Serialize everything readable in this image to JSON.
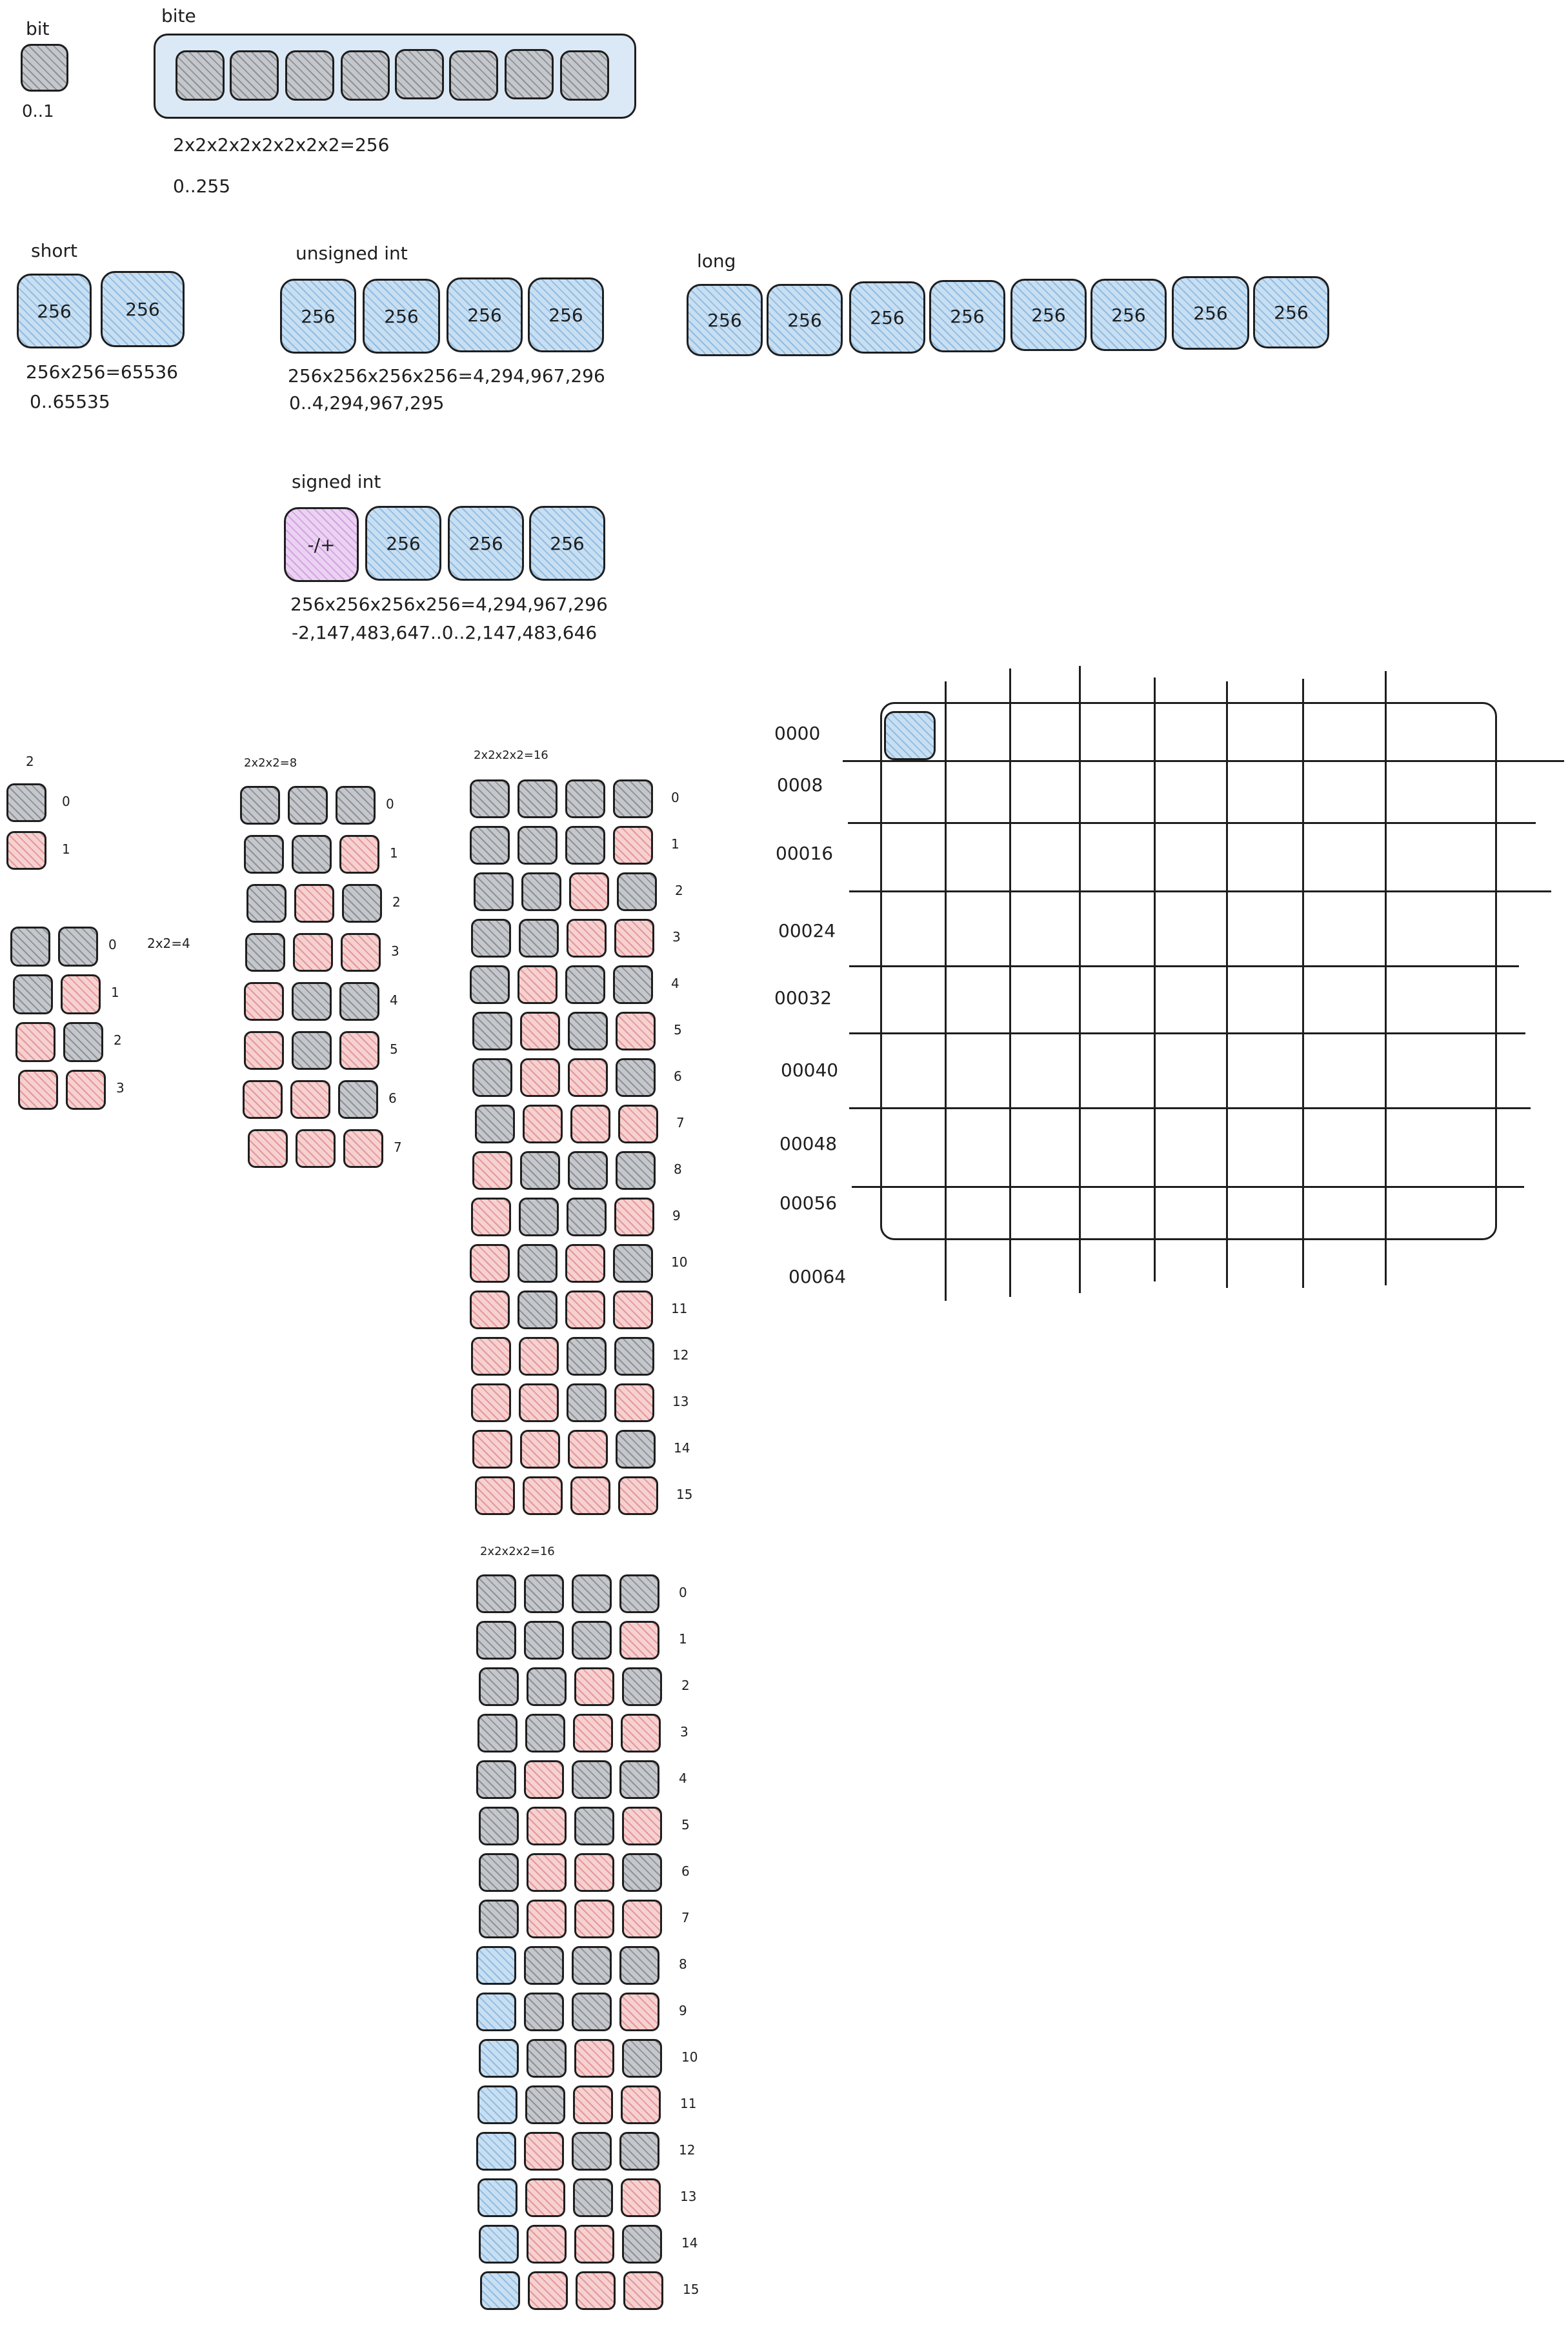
{
  "bit": {
    "title": "bit",
    "range": "0..1"
  },
  "bite": {
    "title": "bite",
    "formula": "2x2x2x2x2x2x2x2=256",
    "range": "0..255"
  },
  "short": {
    "title": "short",
    "cell": "256",
    "formula": "256x256=65536",
    "range": "0..65535"
  },
  "unsigned_int": {
    "title": "unsigned int",
    "cell": "256",
    "formula": "256x256x256x256=4,294,967,296",
    "range": "0..4,294,967,295"
  },
  "long": {
    "title": "long",
    "cell": "256"
  },
  "signed_int": {
    "title": "signed int",
    "sign_cell": "-/+",
    "cell": "256",
    "formula": "256x256x256x256=4,294,967,296",
    "range": "-2,147,483,647..0..2,147,483,646"
  },
  "tables": {
    "t1": {
      "title": "2",
      "rows": [
        "0",
        "1"
      ]
    },
    "t2": {
      "title": "2x2=4",
      "rows": [
        "0",
        "1",
        "2",
        "3"
      ]
    },
    "t3": {
      "title": "2x2x2=8",
      "rows": [
        "0",
        "1",
        "2",
        "3",
        "4",
        "5",
        "6",
        "7"
      ]
    },
    "t4": {
      "title": "2x2x2x2=16",
      "rows": [
        "0",
        "1",
        "2",
        "3",
        "4",
        "5",
        "6",
        "7",
        "8",
        "9",
        "10",
        "11",
        "12",
        "13",
        "14",
        "15"
      ]
    },
    "t5": {
      "title": "2x2x2x2=16",
      "rows": [
        "0",
        "1",
        "2",
        "3",
        "4",
        "5",
        "6",
        "7",
        "8",
        "9",
        "10",
        "11",
        "12",
        "13",
        "14",
        "15"
      ]
    }
  },
  "memory_grid": {
    "address_labels": [
      "0000",
      "0008",
      "00016",
      "00024",
      "00032",
      "00040",
      "00048",
      "00056",
      "00064"
    ]
  },
  "colors": {
    "bit_zero": "#c4c7cc",
    "bit_one": "#f6d1d1",
    "byte_cell": "#c8dff2",
    "sign_bit": "#ebd2f3",
    "stroke": "#1e1e1e"
  }
}
